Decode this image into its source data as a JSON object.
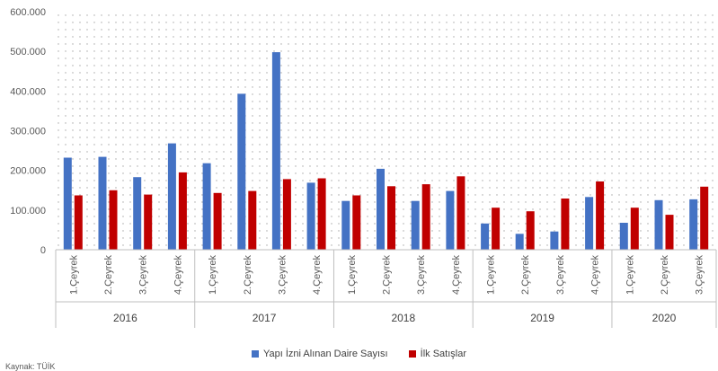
{
  "colors": {
    "series1": "#4472C4",
    "series2": "#C00000",
    "axis": "#BFBFBF",
    "text": "#595959",
    "dot": "#A6A6A6"
  },
  "legend": {
    "series1": "Yapı İzni Alınan Daire Sayısı",
    "series2": "İlk Satışlar"
  },
  "source_text": "Kaynak: TÜİK",
  "chart_data": {
    "type": "bar",
    "title": "",
    "xlabel": "",
    "ylabel": "",
    "ylim": [
      0,
      600000
    ],
    "yticks": [
      0,
      100000,
      200000,
      300000,
      400000,
      500000,
      600000
    ],
    "ytick_labels": [
      "0",
      "100.000",
      "200.000",
      "300.000",
      "400.000",
      "500.000",
      "600.000"
    ],
    "grid": "dotted",
    "legend_position": "bottom",
    "groups": [
      {
        "label": "2016",
        "categories": [
          "1.Çeyrek",
          "2.Çeyrek",
          "3.Çeyrek",
          "4.Çeyrek"
        ]
      },
      {
        "label": "2017",
        "categories": [
          "1.Çeyrek",
          "2.Çeyrek",
          "3.Çeyrek",
          "4.Çeyrek"
        ]
      },
      {
        "label": "2018",
        "categories": [
          "1.Çeyrek",
          "2.Çeyrek",
          "3.Çeyrek",
          "4.Çeyrek"
        ]
      },
      {
        "label": "2019",
        "categories": [
          "1.Çeyrek",
          "2.Çeyrek",
          "3.Çeyrek",
          "4.Çeyrek"
        ]
      },
      {
        "label": "2020",
        "categories": [
          "1.Çeyrek",
          "2.Çeyrek",
          "3.Çeyrek"
        ]
      }
    ],
    "series": [
      {
        "name": "Yapı İzni Alınan Daire Sayısı",
        "values": [
          232000,
          234000,
          183000,
          268000,
          218000,
          393000,
          498000,
          169000,
          123000,
          204000,
          123000,
          148000,
          66000,
          40000,
          46000,
          133000,
          68000,
          125000,
          127000
        ]
      },
      {
        "name": "İlk Satışlar",
        "values": [
          137000,
          150000,
          139000,
          195000,
          143000,
          148000,
          178000,
          180000,
          137000,
          160000,
          165000,
          185000,
          106000,
          97000,
          129000,
          172000,
          106000,
          88000,
          159000
        ]
      }
    ]
  }
}
